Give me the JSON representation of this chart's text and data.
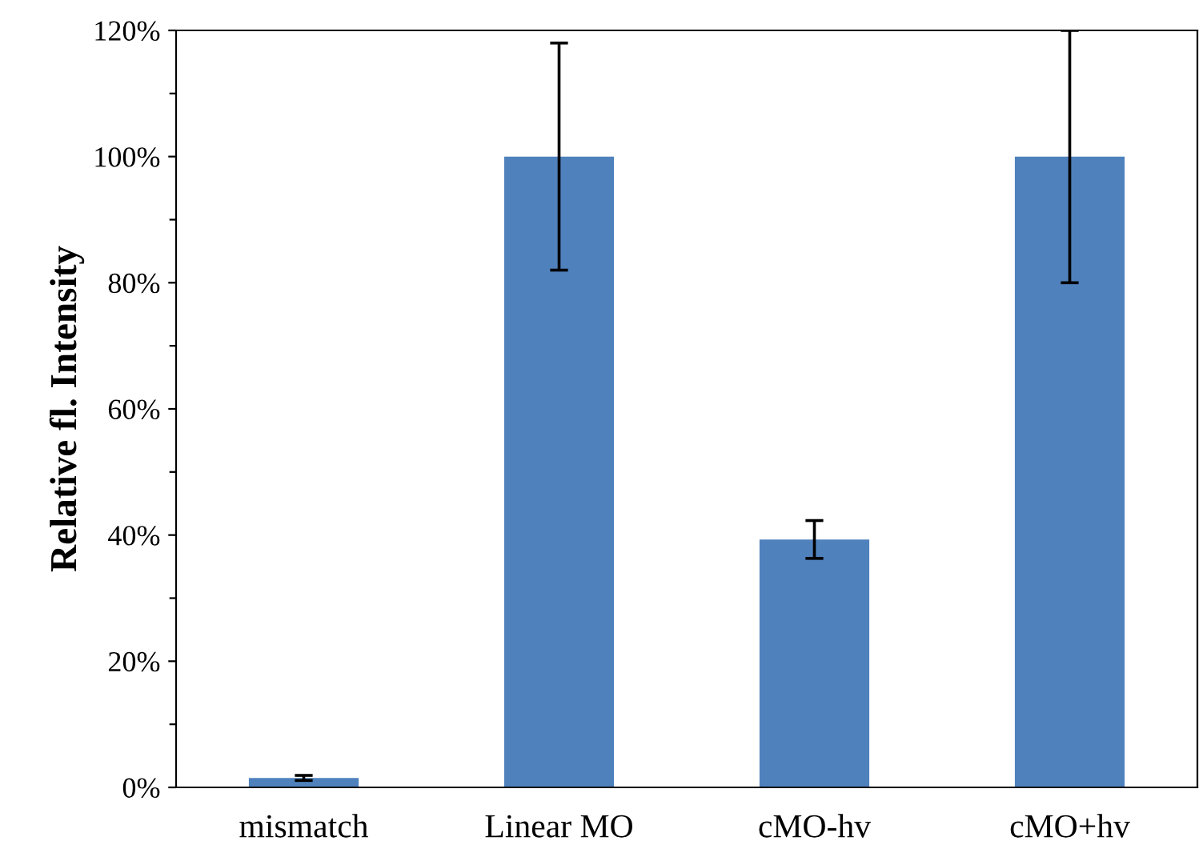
{
  "chart_data": {
    "type": "bar",
    "ylabel": "Relative fl. Intensity",
    "categories": [
      "mismatch",
      "Linear MO",
      "cMO-hv",
      "cMO+hv"
    ],
    "values": [
      1.5,
      100,
      39.3,
      100
    ],
    "errors": [
      0.4,
      18,
      3,
      20
    ],
    "color": "#4f81bd",
    "ylim": [
      0,
      120
    ],
    "yticks": [
      {
        "value": 0,
        "label": "0%"
      },
      {
        "value": 10,
        "label": null
      },
      {
        "value": 20,
        "label": "20%"
      },
      {
        "value": 30,
        "label": null
      },
      {
        "value": 40,
        "label": "40%"
      },
      {
        "value": 50,
        "label": null
      },
      {
        "value": 60,
        "label": "60%"
      },
      {
        "value": 70,
        "label": null
      },
      {
        "value": 80,
        "label": "80%"
      },
      {
        "value": 90,
        "label": null
      },
      {
        "value": 100,
        "label": "100%"
      },
      {
        "value": 110,
        "label": null
      },
      {
        "value": 120,
        "label": "120%"
      }
    ],
    "grid": false,
    "legend": false
  }
}
